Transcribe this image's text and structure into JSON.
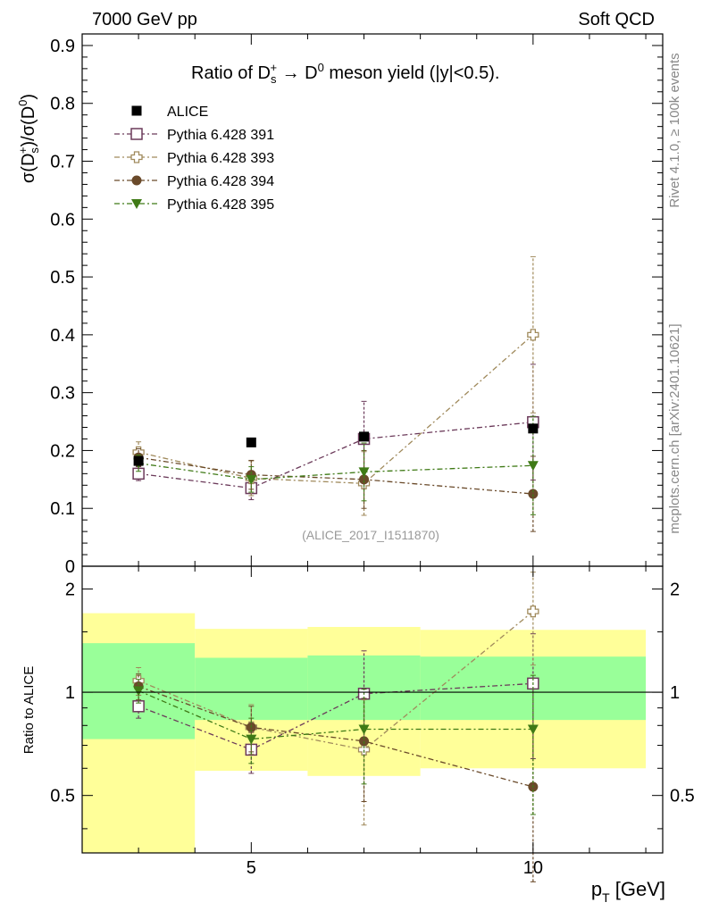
{
  "header": {
    "left": "7000 GeV pp",
    "right": "Soft QCD"
  },
  "side_labels": {
    "rivet": "Rivet 4.1.0, ≥ 100k events",
    "mcplots": "mcplots.cern.ch [arXiv:2401.10621]"
  },
  "chart_data": [
    {
      "type": "scatter",
      "title_parts": [
        "Ratio of D",
        "s",
        "+",
        " → D",
        "0",
        " meson yield (|y|<0.5)."
      ],
      "ylabel_parts": [
        "σ(D",
        "s",
        "+",
        ")/σ(D",
        "0",
        ")"
      ],
      "watermark": "(ALICE_2017_I1511870)",
      "xlim": [
        2,
        12.3
      ],
      "ylim": [
        0,
        0.92
      ],
      "yticks": [
        0,
        0.1,
        0.2,
        0.3,
        0.4,
        0.5,
        0.6,
        0.7,
        0.8,
        0.9
      ],
      "ytick_labels": [
        "0",
        "0.1",
        "0.2",
        "0.3",
        "0.4",
        "0.5",
        "0.6",
        "0.7",
        "0.8",
        "0.9"
      ],
      "data": {
        "name": "ALICE",
        "x": [
          3,
          5,
          7,
          10
        ],
        "y": [
          0.182,
          0.214,
          0.224,
          0.238
        ]
      },
      "series": [
        {
          "name": "Pythia 6.428 391",
          "color": "#6b3a5a",
          "marker": "open-square",
          "x": [
            3,
            5,
            7,
            10
          ],
          "y": [
            0.16,
            0.135,
            0.22,
            0.249
          ],
          "err": [
            0.012,
            0.02,
            0.065,
            0.1
          ]
        },
        {
          "name": "Pythia 6.428 393",
          "color": "#a08a5c",
          "marker": "open-cross",
          "x": [
            3,
            5,
            7,
            10
          ],
          "y": [
            0.197,
            0.152,
            0.143,
            0.4
          ],
          "err": [
            0.018,
            0.03,
            0.055,
            0.135
          ]
        },
        {
          "name": "Pythia 6.428 394",
          "color": "#6a4a2a",
          "marker": "filled-circle",
          "x": [
            3,
            5,
            7,
            10
          ],
          "y": [
            0.188,
            0.158,
            0.15,
            0.125
          ],
          "err": [
            0.015,
            0.025,
            0.05,
            0.065
          ]
        },
        {
          "name": "Pythia 6.428 395",
          "color": "#3f7a16",
          "marker": "filled-triangle",
          "x": [
            3,
            5,
            7,
            10
          ],
          "y": [
            0.178,
            0.15,
            0.163,
            0.174
          ],
          "err": [
            0.014,
            0.022,
            0.05,
            0.085
          ]
        }
      ]
    },
    {
      "type": "scatter",
      "ylabel": "Ratio to ALICE",
      "xlabel_parts": [
        "p",
        "T",
        " [GeV]"
      ],
      "xlim": [
        2,
        12.3
      ],
      "ylim": [
        0.34,
        2.33
      ],
      "xticks": [
        5,
        10
      ],
      "xtick_labels": [
        "5",
        "10"
      ],
      "yticks": [
        0.5,
        1,
        2
      ],
      "ytick_labels": [
        "0.5",
        "1",
        "2"
      ],
      "bands": [
        {
          "x": [
            2,
            4
          ],
          "inner": [
            0.73,
            1.39
          ],
          "outer": [
            0.34,
            1.7
          ]
        },
        {
          "x": [
            4,
            6
          ],
          "inner": [
            0.83,
            1.26
          ],
          "outer": [
            0.59,
            1.53
          ]
        },
        {
          "x": [
            6,
            8
          ],
          "inner": [
            0.83,
            1.28
          ],
          "outer": [
            0.57,
            1.55
          ]
        },
        {
          "x": [
            8,
            12
          ],
          "inner": [
            0.83,
            1.27
          ],
          "outer": [
            0.6,
            1.52
          ]
        }
      ],
      "band_colors": {
        "inner": "#99ff99",
        "outer": "#ffff99"
      },
      "series": [
        {
          "name": "Pythia 6.428 391",
          "x": [
            3,
            5,
            7,
            10
          ],
          "y": [
            0.91,
            0.68,
            0.99,
            1.06
          ],
          "err": [
            0.07,
            0.1,
            0.33,
            0.42
          ]
        },
        {
          "name": "Pythia 6.428 393",
          "x": [
            3,
            5,
            7,
            10
          ],
          "y": [
            1.08,
            0.79,
            0.68,
            1.72
          ],
          "err": [
            0.1,
            0.13,
            0.27,
            0.52
          ]
        },
        {
          "name": "Pythia 6.428 394",
          "x": [
            3,
            5,
            7,
            10
          ],
          "y": [
            1.04,
            0.79,
            0.72,
            0.53
          ],
          "err": [
            0.09,
            0.12,
            0.24,
            0.25
          ]
        },
        {
          "name": "Pythia 6.428 395",
          "x": [
            3,
            5,
            7,
            10
          ],
          "y": [
            1.01,
            0.73,
            0.78,
            0.78
          ],
          "err": [
            0.08,
            0.11,
            0.24,
            0.34
          ]
        }
      ]
    }
  ]
}
